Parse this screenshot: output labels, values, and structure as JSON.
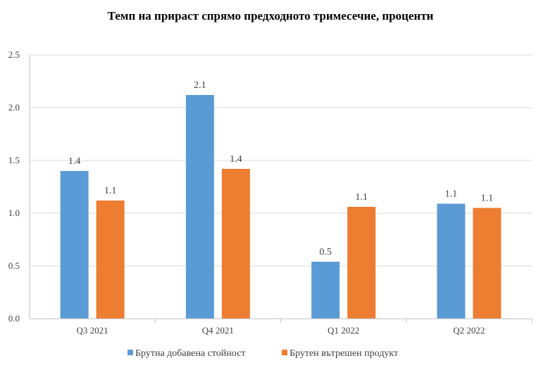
{
  "chart_data": {
    "type": "bar",
    "title": "Темп на прираст спрямо предходното тримесечие, проценти",
    "xlabel": "",
    "ylabel": "",
    "ylim": [
      0,
      2.5
    ],
    "yticks": [
      "0.0",
      "0.5",
      "1.0",
      "1.5",
      "2.0",
      "2.5"
    ],
    "grid": true,
    "legend_position": "bottom",
    "categories": [
      "Q3 2021",
      "Q4 2021",
      "Q1 2022",
      "Q2 2022"
    ],
    "series": [
      {
        "name": "Брутна добавена стойност",
        "color": "#5B9BD5",
        "values": [
          1.4,
          2.12,
          0.54,
          1.09
        ],
        "labels": [
          "1.4",
          "2.1",
          "0.5",
          "1.1"
        ]
      },
      {
        "name": "Брутен вътрешен продукт",
        "color": "#ED7D31",
        "values": [
          1.12,
          1.42,
          1.06,
          1.05
        ],
        "labels": [
          "1.1",
          "1.4",
          "1.1",
          "1.1"
        ]
      }
    ]
  }
}
